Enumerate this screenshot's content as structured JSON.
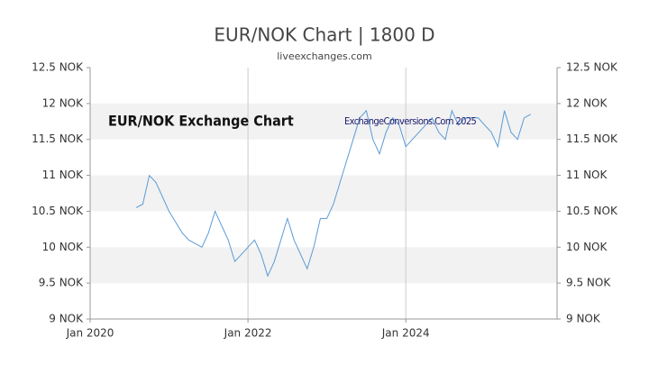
{
  "chart_data": {
    "type": "line",
    "title": "EUR/NOK Chart | 1800 D",
    "subtitle": "liveexchanges.com",
    "annotations": [
      "EUR/NOK Exchange Chart",
      "ExchangeConversions.Com 2025"
    ],
    "x": [
      "2020-08",
      "2020-09",
      "2020-10",
      "2020-11",
      "2020-12",
      "2021-01",
      "2021-02",
      "2021-03",
      "2021-04",
      "2021-05",
      "2021-06",
      "2021-07",
      "2021-08",
      "2021-09",
      "2021-10",
      "2021-11",
      "2021-12",
      "2022-01",
      "2022-02",
      "2022-03",
      "2022-04",
      "2022-05",
      "2022-06",
      "2022-07",
      "2022-08",
      "2022-09",
      "2022-10",
      "2022-11",
      "2022-12",
      "2023-01",
      "2023-02",
      "2023-03",
      "2023-04",
      "2023-05",
      "2023-06",
      "2023-07",
      "2023-08",
      "2023-09",
      "2023-10",
      "2023-11",
      "2023-12",
      "2024-01",
      "2024-02",
      "2024-03",
      "2024-04",
      "2024-05",
      "2024-06",
      "2024-07",
      "2024-08",
      "2024-09",
      "2024-10",
      "2024-11",
      "2024-12",
      "2025-01",
      "2025-02",
      "2025-03",
      "2025-04",
      "2025-05",
      "2025-06",
      "2025-07",
      "2025-08"
    ],
    "values": [
      10.55,
      10.6,
      11.0,
      10.9,
      10.7,
      10.5,
      10.35,
      10.2,
      10.1,
      10.05,
      10.0,
      10.2,
      10.5,
      10.3,
      10.1,
      9.8,
      9.9,
      10.0,
      10.1,
      9.9,
      9.6,
      9.8,
      10.1,
      10.4,
      10.1,
      9.9,
      9.7,
      10.0,
      10.4,
      10.4,
      10.6,
      10.9,
      11.2,
      11.5,
      11.8,
      11.9,
      11.5,
      11.3,
      11.6,
      11.8,
      11.7,
      11.4,
      11.5,
      11.6,
      11.7,
      11.8,
      11.6,
      11.5,
      11.9,
      11.7,
      11.8,
      11.8,
      11.8,
      11.7,
      11.6,
      11.4,
      11.9,
      11.6,
      11.5,
      11.8,
      11.85
    ],
    "color": "#5b9bd5",
    "xlim": [
      "2020-01",
      "2025-12"
    ],
    "xticks": [
      {
        "value": "2020-01",
        "label": "Jan 2020"
      },
      {
        "value": "2022-01",
        "label": "Jan 2022"
      },
      {
        "value": "2024-01",
        "label": "Jan 2024"
      }
    ],
    "ylim": [
      9,
      12.5
    ],
    "yticks": [
      {
        "value": 9,
        "label": "9 NOK"
      },
      {
        "value": 9.5,
        "label": "9.5 NOK"
      },
      {
        "value": 10,
        "label": "10 NOK"
      },
      {
        "value": 10.5,
        "label": "10.5 NOK"
      },
      {
        "value": 11,
        "label": "11 NOK"
      },
      {
        "value": 11.5,
        "label": "11.5 NOK"
      },
      {
        "value": 12,
        "label": "12 NOK"
      },
      {
        "value": 12.5,
        "label": "12.5 NOK"
      }
    ],
    "y2lim": [
      9,
      12.5
    ],
    "y2ticks": [
      {
        "value": 9,
        "label": "9 NOK"
      },
      {
        "value": 9.5,
        "label": "9.5 NOK"
      },
      {
        "value": 10,
        "label": "10 NOK"
      },
      {
        "value": 10.5,
        "label": "10.5 NOK"
      },
      {
        "value": 11,
        "label": "11 NOK"
      },
      {
        "value": 11.5,
        "label": "11.5 NOK"
      },
      {
        "value": 12,
        "label": "12 NOK"
      },
      {
        "value": 12.5,
        "label": "12.5 NOK"
      }
    ],
    "grid": true
  }
}
